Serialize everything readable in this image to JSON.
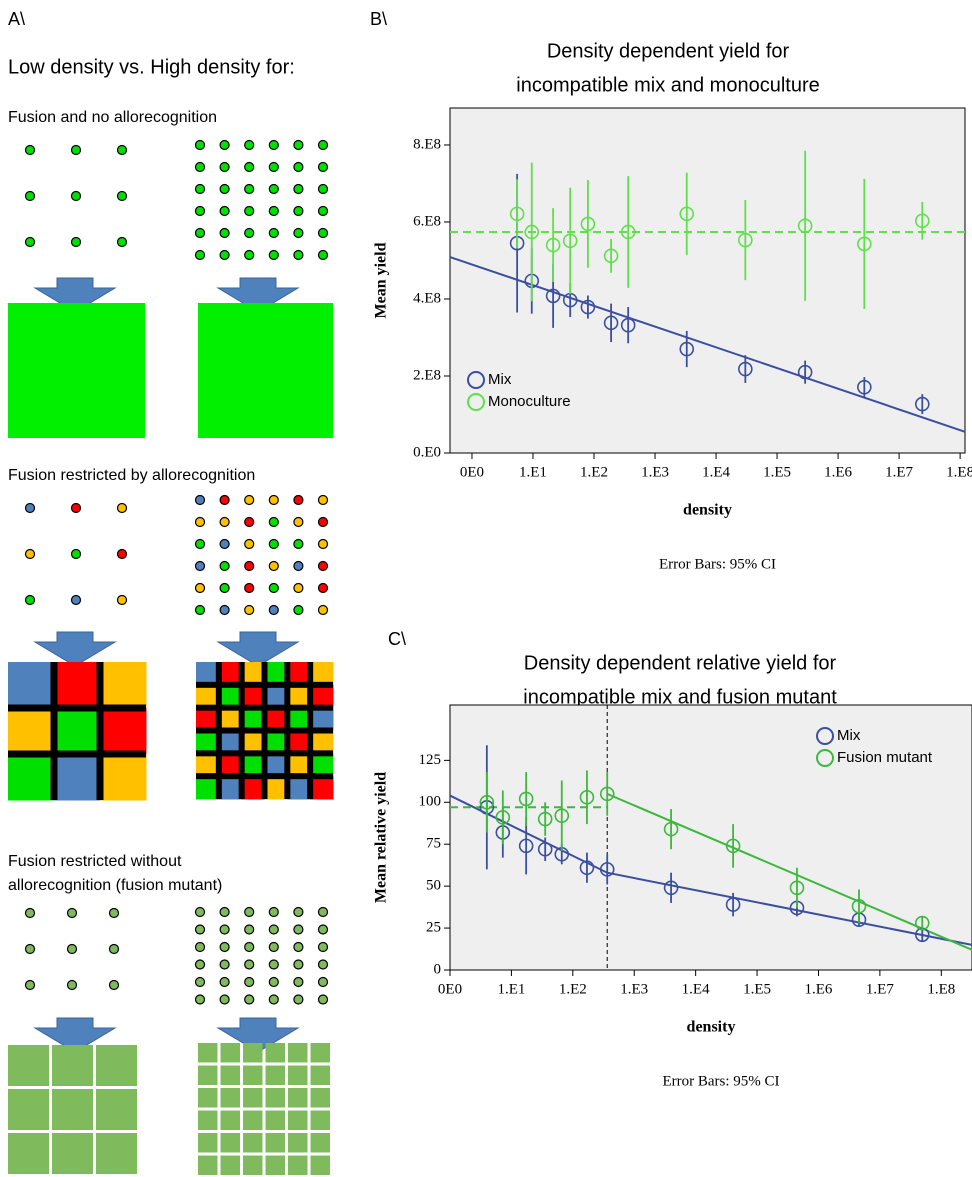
{
  "panel_a": {
    "label": "A\\",
    "heading": "Low density vs. High density for:",
    "sections": [
      {
        "title_lines": [
          "Fusion and no allorecognition"
        ]
      },
      {
        "title_lines": [
          "Fusion restricted by allorecognition"
        ]
      },
      {
        "title_lines": [
          "Fusion restricted without",
          "allorecognition (fusion mutant)"
        ]
      }
    ]
  },
  "chart_data": [
    {
      "type": "scatter",
      "panel_label": "B\\",
      "title": [
        "Density dependent yield for",
        "incompatible mix and monoculture"
      ],
      "x_label": "density",
      "y_label": "Mean yield",
      "note": "Error Bars: 95% CI",
      "xlim": [
        -0.36,
        8.08
      ],
      "xticks": [
        {
          "value": 0,
          "label": "0E0"
        },
        {
          "value": 1,
          "label": "1.E1"
        },
        {
          "value": 2,
          "label": "1.E2"
        },
        {
          "value": 3,
          "label": "1.E3"
        },
        {
          "value": 4,
          "label": "1.E4"
        },
        {
          "value": 5,
          "label": "1.E5"
        },
        {
          "value": 6,
          "label": "1.E6"
        },
        {
          "value": 7,
          "label": "1.E7"
        },
        {
          "value": 8,
          "label": "1.E8"
        }
      ],
      "ylim": [
        0,
        896000000
      ],
      "yticks": [
        {
          "value": 0,
          "label": "0.E0"
        },
        {
          "value": 200000000,
          "label": "2.E8"
        },
        {
          "value": 400000000,
          "label": "4.E8"
        },
        {
          "value": 600000000,
          "label": "6.E8"
        },
        {
          "value": 800000000,
          "label": "8.E8"
        }
      ],
      "legend": "lower left",
      "x": [
        0.74,
        0.98,
        1.33,
        1.61,
        1.9,
        2.28,
        2.56,
        3.52,
        4.48,
        5.46,
        6.43,
        7.38
      ],
      "series": [
        {
          "name": "Mix",
          "color": "#3b4fa1",
          "values": [
            545000000,
            447000000,
            408000000,
            397000000,
            379000000,
            338000000,
            332000000,
            270000000,
            218000000,
            210000000,
            171000000,
            127000000
          ],
          "errors": [
            180000000,
            85000000,
            83000000,
            44000000,
            30000000,
            50000000,
            47000000,
            47000000,
            36000000,
            30000000,
            26000000,
            26000000
          ],
          "fits": [
            {
              "x": [
                -0.36,
                8.08
              ],
              "y": [
                509000000,
                55000000
              ],
              "dashed": false
            }
          ]
        },
        {
          "name": "Monoculture",
          "color": "#5fe04a",
          "values": [
            621000000,
            574000000,
            540000000,
            551000000,
            595000000,
            512000000,
            574000000,
            621000000,
            553000000,
            590000000,
            543000000,
            603000000
          ],
          "errors": [
            90000000,
            180000000,
            96000000,
            138000000,
            114000000,
            44000000,
            145000000,
            107000000,
            104000000,
            195000000,
            169000000,
            49000000
          ],
          "fits": [
            {
              "x": [
                -0.36,
                8.08
              ],
              "y": [
                574000000,
                574000000
              ],
              "dashed": true
            }
          ]
        }
      ]
    },
    {
      "type": "scatter",
      "panel_label": "C\\",
      "title": [
        "Density dependent relative yield for",
        "incompatible mix and fusion mutant"
      ],
      "x_label": "density",
      "y_label": "Mean relative yield",
      "note": "Error Bars: 95% CI",
      "xlim": [
        0,
        8.5
      ],
      "xticks": [
        {
          "value": 0,
          "label": "0E0"
        },
        {
          "value": 1,
          "label": "1.E1"
        },
        {
          "value": 2,
          "label": "1.E2"
        },
        {
          "value": 3,
          "label": "1.E3"
        },
        {
          "value": 4,
          "label": "1.E4"
        },
        {
          "value": 5,
          "label": "1.E5"
        },
        {
          "value": 6,
          "label": "1.E6"
        },
        {
          "value": 7,
          "label": "1.E7"
        },
        {
          "value": 8,
          "label": "1.E8"
        }
      ],
      "ylim": [
        0,
        158
      ],
      "yticks": [
        0,
        25,
        50,
        75,
        100,
        125
      ],
      "legend": "upper right",
      "reference_x": 2.56,
      "x": [
        0.6,
        0.86,
        1.24,
        1.55,
        1.82,
        2.23,
        2.56,
        3.6,
        4.61,
        5.65,
        6.66,
        7.69
      ],
      "series": [
        {
          "name": "Mix",
          "color": "#3b4fa1",
          "values": [
            97,
            82,
            74,
            72,
            69,
            61,
            60,
            49,
            39,
            37,
            30,
            21
          ],
          "errors": [
            37,
            15,
            17,
            7,
            6,
            9,
            9,
            9,
            7,
            5,
            4,
            4
          ],
          "fits": [
            {
              "x": [
                0,
                2.56,
                8.5
              ],
              "y": [
                104,
                58,
                15
              ],
              "dashed": false
            }
          ]
        },
        {
          "name": "Fusion mutant",
          "color": "#3cb83c",
          "values": [
            100,
            91,
            102,
            90,
            92,
            103,
            105,
            84,
            74,
            49,
            38,
            28
          ],
          "errors": [
            18,
            16,
            16,
            10,
            21,
            16,
            13,
            12,
            13,
            12,
            10,
            4
          ],
          "fits": [
            {
              "x": [
                0,
                2.56
              ],
              "y": [
                97,
                97
              ],
              "dashed": true
            },
            {
              "x": [
                2.56,
                8.5
              ],
              "y": [
                105,
                12
              ],
              "dashed": false
            }
          ]
        }
      ]
    }
  ]
}
